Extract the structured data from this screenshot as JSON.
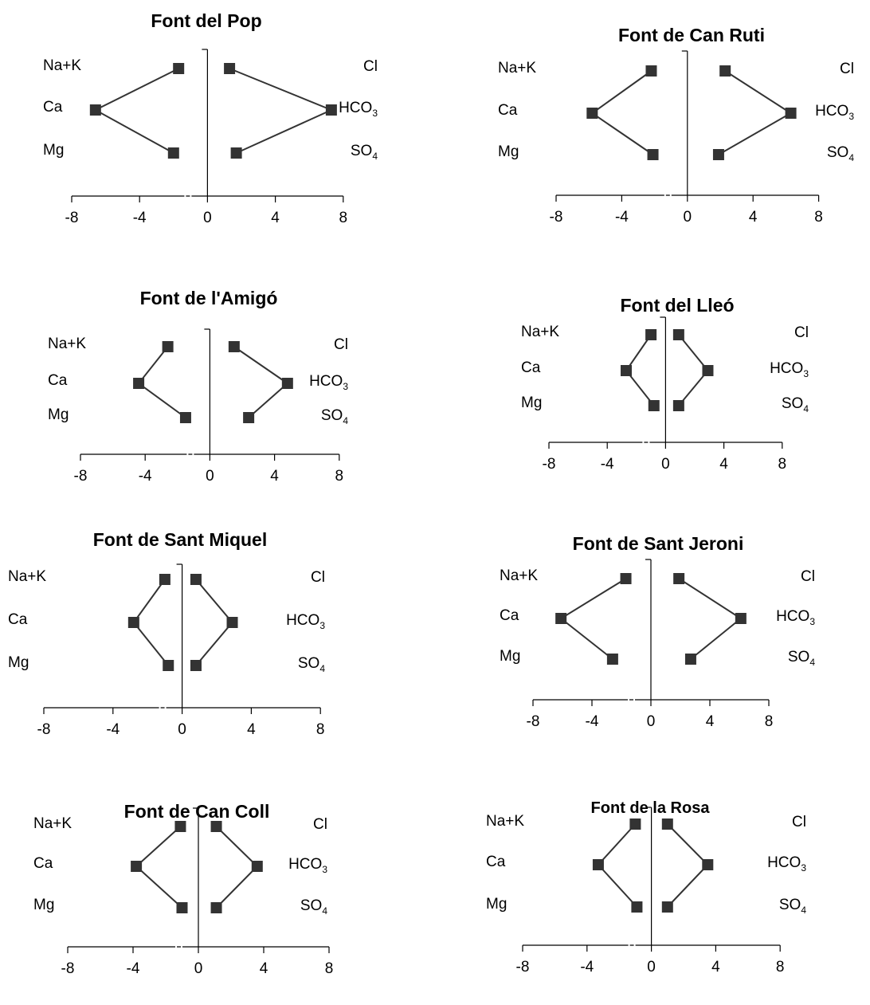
{
  "chart_data": [
    {
      "type": "stiff",
      "title": "Font del Pop",
      "cation_labels": [
        "Na+K",
        "Ca",
        "Mg"
      ],
      "anion_labels": [
        "Cl",
        "HCO",
        "SO"
      ],
      "anion_subscripts": [
        "",
        "3",
        "4"
      ],
      "cations": [
        -1.7,
        -6.6,
        -2.0
      ],
      "anions": [
        1.3,
        7.3,
        1.7
      ],
      "xlim": [
        -8,
        8
      ],
      "xticks": [
        "-8",
        "-4",
        "0",
        "4",
        "8"
      ]
    },
    {
      "type": "stiff",
      "title": "Font de Can Ruti",
      "cation_labels": [
        "Na+K",
        "Ca",
        "Mg"
      ],
      "anion_labels": [
        "Cl",
        "HCO",
        "SO"
      ],
      "anion_subscripts": [
        "",
        "3",
        "4"
      ],
      "cations": [
        -2.2,
        -5.8,
        -2.1
      ],
      "anions": [
        2.3,
        6.3,
        1.9
      ],
      "xlim": [
        -8,
        8
      ],
      "xticks": [
        "-8",
        "-4",
        "0",
        "4",
        "8"
      ]
    },
    {
      "type": "stiff",
      "title": "Font de l'Amigó",
      "cation_labels": [
        "Na+K",
        "Ca",
        "Mg"
      ],
      "anion_labels": [
        "Cl",
        "HCO",
        "SO"
      ],
      "anion_subscripts": [
        "",
        "3",
        "4"
      ],
      "cations": [
        -2.6,
        -4.4,
        -1.5
      ],
      "anions": [
        1.5,
        4.8,
        2.4
      ],
      "xlim": [
        -8,
        8
      ],
      "xticks": [
        "-8",
        "-4",
        "0",
        "4",
        "8"
      ]
    },
    {
      "type": "stiff",
      "title": "Font del Lleó",
      "cation_labels": [
        "Na+K",
        "Ca",
        "Mg"
      ],
      "anion_labels": [
        "Cl",
        "HCO",
        "SO"
      ],
      "anion_subscripts": [
        "",
        "3",
        "4"
      ],
      "cations": [
        -1.0,
        -2.7,
        -0.8
      ],
      "anions": [
        0.9,
        2.9,
        0.9
      ],
      "xlim": [
        -8,
        8
      ],
      "xticks": [
        "-8",
        "-4",
        "0",
        "4",
        "8"
      ]
    },
    {
      "type": "stiff",
      "title": "Font de Sant Miquel",
      "cation_labels": [
        "Na+K",
        "Ca",
        "Mg"
      ],
      "anion_labels": [
        "Cl",
        "HCO",
        "SO"
      ],
      "anion_subscripts": [
        "",
        "3",
        "4"
      ],
      "cations": [
        -1.0,
        -2.8,
        -0.8
      ],
      "anions": [
        0.8,
        2.9,
        0.8
      ],
      "xlim": [
        -8,
        8
      ],
      "xticks": [
        "-8",
        "-4",
        "0",
        "4",
        "8"
      ]
    },
    {
      "type": "stiff",
      "title": "Font de Sant Jeroni",
      "cation_labels": [
        "Na+K",
        "Ca",
        "Mg"
      ],
      "anion_labels": [
        "Cl",
        "HCO",
        "SO"
      ],
      "anion_subscripts": [
        "",
        "3",
        "4"
      ],
      "cations": [
        -1.7,
        -6.1,
        -2.6
      ],
      "anions": [
        1.9,
        6.1,
        2.7
      ],
      "xlim": [
        -8,
        8
      ],
      "xticks": [
        "-8",
        "-4",
        "0",
        "4",
        "8"
      ]
    },
    {
      "type": "stiff",
      "title": "Font de Can Coll",
      "cation_labels": [
        "Na+K",
        "Ca",
        "Mg"
      ],
      "anion_labels": [
        "Cl",
        "HCO",
        "SO"
      ],
      "anion_subscripts": [
        "",
        "3",
        "4"
      ],
      "cations": [
        -1.1,
        -3.8,
        -1.0
      ],
      "anions": [
        1.1,
        3.6,
        1.1
      ],
      "xlim": [
        -8,
        8
      ],
      "xticks": [
        "-8",
        "-4",
        "0",
        "4",
        "8"
      ]
    },
    {
      "type": "stiff",
      "title": "Font de la Rosa",
      "cation_labels": [
        "Na+K",
        "Ca",
        "Mg"
      ],
      "anion_labels": [
        "Cl",
        "HCO",
        "SO"
      ],
      "anion_subscripts": [
        "",
        "3",
        "4"
      ],
      "cations": [
        -1.0,
        -3.3,
        -0.9
      ],
      "anions": [
        1.0,
        3.5,
        1.0
      ],
      "xlim": [
        -8,
        8
      ],
      "xticks": [
        "-8",
        "-4",
        "0",
        "4",
        "8"
      ]
    }
  ]
}
